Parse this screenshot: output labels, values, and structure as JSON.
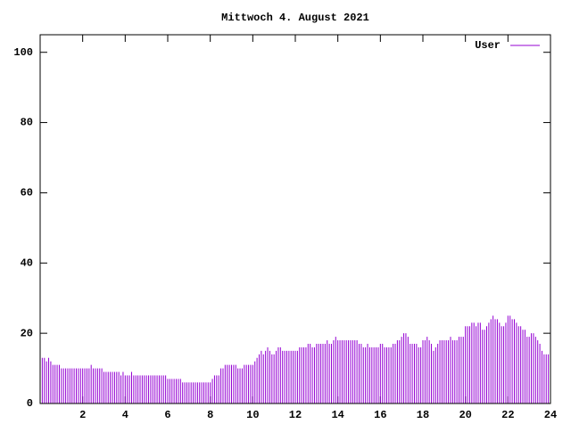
{
  "chart_data": {
    "type": "impulse",
    "title": "Mittwoch 4. August 2021",
    "x": [
      0.1,
      0.2,
      0.3,
      0.4,
      0.5,
      0.6,
      0.7,
      0.8,
      0.9,
      1.0,
      1.1,
      1.2,
      1.3,
      1.4,
      1.5,
      1.6,
      1.7,
      1.8,
      1.9,
      2.0,
      2.1,
      2.2,
      2.3,
      2.4,
      2.5,
      2.6,
      2.7,
      2.8,
      2.9,
      3.0,
      3.1,
      3.2,
      3.3,
      3.4,
      3.5,
      3.6,
      3.7,
      3.8,
      3.9,
      4.0,
      4.1,
      4.2,
      4.3,
      4.4,
      4.5,
      4.6,
      4.7,
      4.8,
      4.9,
      5.0,
      5.1,
      5.2,
      5.3,
      5.4,
      5.5,
      5.6,
      5.7,
      5.8,
      5.9,
      6.0,
      6.1,
      6.2,
      6.3,
      6.4,
      6.5,
      6.6,
      6.7,
      6.8,
      6.9,
      7.0,
      7.1,
      7.2,
      7.3,
      7.4,
      7.5,
      7.6,
      7.7,
      7.8,
      7.9,
      8.0,
      8.1,
      8.2,
      8.3,
      8.4,
      8.5,
      8.6,
      8.7,
      8.8,
      8.9,
      9.0,
      9.1,
      9.2,
      9.3,
      9.4,
      9.5,
      9.6,
      9.7,
      9.8,
      9.9,
      10.0,
      10.1,
      10.2,
      10.3,
      10.4,
      10.5,
      10.6,
      10.7,
      10.8,
      10.9,
      11.0,
      11.1,
      11.2,
      11.3,
      11.4,
      11.5,
      11.6,
      11.7,
      11.8,
      11.9,
      12.0,
      12.1,
      12.2,
      12.3,
      12.4,
      12.5,
      12.6,
      12.7,
      12.8,
      12.9,
      13.0,
      13.1,
      13.2,
      13.3,
      13.4,
      13.5,
      13.6,
      13.7,
      13.8,
      13.9,
      14.0,
      14.1,
      14.2,
      14.3,
      14.4,
      14.5,
      14.6,
      14.7,
      14.8,
      14.9,
      15.0,
      15.1,
      15.2,
      15.3,
      15.4,
      15.5,
      15.6,
      15.7,
      15.8,
      15.9,
      16.0,
      16.1,
      16.2,
      16.3,
      16.4,
      16.5,
      16.6,
      16.7,
      16.8,
      16.9,
      17.0,
      17.1,
      17.2,
      17.3,
      17.4,
      17.5,
      17.6,
      17.7,
      17.8,
      17.9,
      18.0,
      18.1,
      18.2,
      18.3,
      18.4,
      18.5,
      18.6,
      18.7,
      18.8,
      18.9,
      19.0,
      19.1,
      19.2,
      19.3,
      19.4,
      19.5,
      19.6,
      19.7,
      19.8,
      19.9,
      20.0,
      20.1,
      20.2,
      20.3,
      20.4,
      20.5,
      20.6,
      20.7,
      20.8,
      20.9,
      21.0,
      21.1,
      21.2,
      21.3,
      21.4,
      21.5,
      21.6,
      21.7,
      21.8,
      21.9,
      22.0,
      22.1,
      22.2,
      22.3,
      22.4,
      22.5,
      22.6,
      22.7,
      22.8,
      22.9,
      23.0,
      23.1,
      23.2,
      23.3,
      23.4,
      23.5,
      23.6,
      23.7,
      23.8,
      23.9,
      24.0
    ],
    "series": [
      {
        "name": "User",
        "color": "#9400d3",
        "values": [
          13,
          13,
          12,
          13,
          12,
          11,
          11,
          11,
          11,
          10,
          10,
          10,
          10,
          10,
          10,
          10,
          10,
          10,
          10,
          10,
          10,
          10,
          10,
          11,
          10,
          10,
          10,
          10,
          10,
          9,
          9,
          9,
          9,
          9,
          9,
          9,
          9,
          8,
          9,
          8,
          8,
          8,
          9,
          8,
          8,
          8,
          8,
          8,
          8,
          8,
          8,
          8,
          8,
          8,
          8,
          8,
          8,
          8,
          8,
          7,
          7,
          7,
          7,
          7,
          7,
          7,
          6,
          6,
          6,
          6,
          6,
          6,
          6,
          6,
          6,
          6,
          6,
          6,
          6,
          6,
          7,
          8,
          8,
          8,
          10,
          10,
          11,
          11,
          11,
          11,
          11,
          11,
          10,
          10,
          10,
          11,
          11,
          11,
          11,
          11,
          12,
          13,
          14,
          15,
          14,
          15,
          16,
          15,
          14,
          14,
          15,
          16,
          16,
          15,
          15,
          15,
          15,
          15,
          15,
          15,
          15,
          16,
          16,
          16,
          16,
          17,
          17,
          16,
          16,
          17,
          17,
          17,
          17,
          17,
          18,
          17,
          17,
          18,
          19,
          18,
          18,
          18,
          18,
          18,
          18,
          18,
          18,
          18,
          18,
          17,
          17,
          16,
          16,
          17,
          16,
          16,
          16,
          16,
          16,
          17,
          17,
          16,
          16,
          16,
          16,
          17,
          17,
          18,
          18,
          19,
          20,
          20,
          19,
          17,
          17,
          17,
          17,
          16,
          16,
          18,
          18,
          19,
          18,
          17,
          15,
          16,
          17,
          18,
          18,
          18,
          18,
          18,
          19,
          18,
          18,
          18,
          19,
          19,
          19,
          22,
          22,
          22,
          23,
          23,
          22,
          23,
          23,
          21,
          21,
          22,
          23,
          24,
          25,
          24,
          24,
          23,
          22,
          22,
          23,
          25,
          25,
          24,
          24,
          23,
          22,
          22,
          21,
          21,
          19,
          19,
          20,
          20,
          19,
          18,
          17,
          15,
          14,
          14,
          14,
          13
        ]
      }
    ],
    "xlim": [
      0,
      24
    ],
    "xticks": [
      2,
      4,
      6,
      8,
      10,
      12,
      14,
      16,
      18,
      20,
      22,
      24
    ],
    "ylim": [
      0,
      105
    ],
    "yticks": [
      0,
      20,
      40,
      60,
      80,
      100
    ],
    "legend": "top-right",
    "grid": false
  }
}
